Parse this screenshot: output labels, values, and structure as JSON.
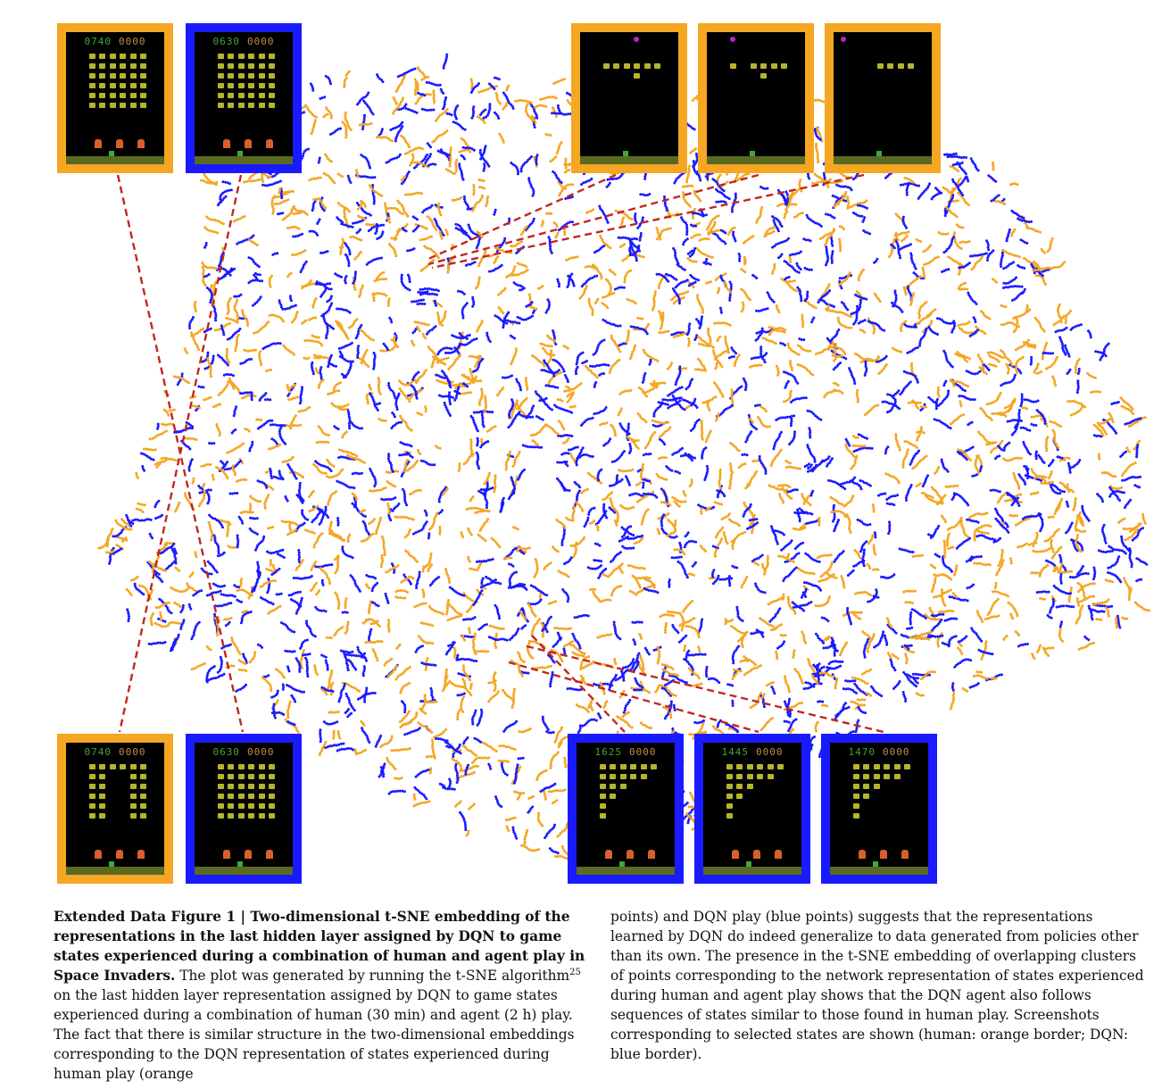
{
  "colors": {
    "human": "#f5a623",
    "dqn": "#1a1aff",
    "connector": "#c0281f"
  },
  "thumbnails": {
    "top_left_human": {
      "score_left": "0740",
      "score_right": "0000",
      "border": "human"
    },
    "top_left_dqn": {
      "score_left": "0630",
      "score_right": "0000",
      "border": "dqn"
    },
    "top_right_1": {
      "score_left": "",
      "score_right": "",
      "border": "human"
    },
    "top_right_2": {
      "score_left": "",
      "score_right": "",
      "border": "human"
    },
    "top_right_3": {
      "score_left": "",
      "score_right": "",
      "border": "human"
    },
    "bottom_left_human": {
      "score_left": "0740",
      "score_right": "0000",
      "border": "human"
    },
    "bottom_left_dqn": {
      "score_left": "0630",
      "score_right": "0000",
      "border": "dqn"
    },
    "bottom_right_1": {
      "score_left": "1625",
      "score_right": "0000",
      "border": "dqn"
    },
    "bottom_right_2": {
      "score_left": "1445",
      "score_right": "0000",
      "border": "dqn"
    },
    "bottom_right_3": {
      "score_left": "1470",
      "score_right": "0000",
      "border": "dqn"
    }
  },
  "caption": {
    "label": "Extended Data Figure 1 | Two-dimensional t-SNE embedding of the representations in the last hidden layer assigned by DQN to game states experienced during a combination of human and agent play in Space Invaders.",
    "body_1": " The plot was generated by running the t-SNE algorithm",
    "citation": "25",
    "body_2": " on the last hidden layer representation assigned by DQN to game states experienced during a combination of human (30 min) and agent (2 h) play. The fact that there is similar structure in the two-dimensional embeddings corresponding to the DQN representation of states experienced during human play (orange",
    "body_right": "points) and DQN play (blue points) suggests that the representations learned by DQN do indeed generalize to data generated from policies other than its own. The presence in the t-SNE embedding of overlapping clusters of points corresponding to the network representation of states experienced during human and agent play shows that the DQN agent also follows sequences of states similar to those found in human play. Screenshots corresponding to selected states are shown (human: orange border; DQN: blue border)."
  }
}
